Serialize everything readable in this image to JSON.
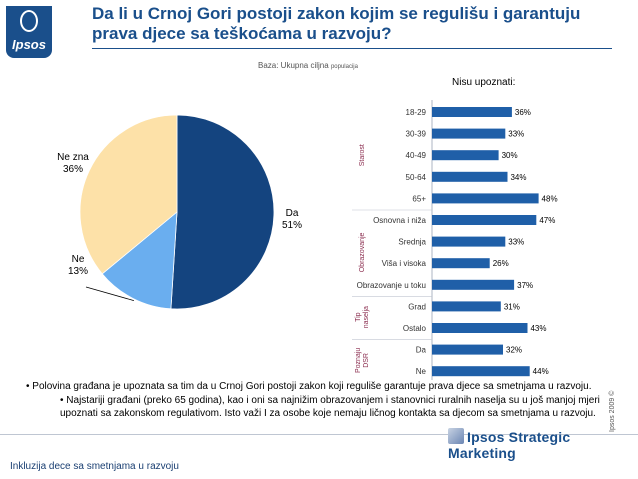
{
  "logo": {
    "text": "Ipsos",
    "icon": "ipsos-logo-icon"
  },
  "header": {
    "title": "Da li u Crnoj Gori postoji zakon kojim se regulišu i garantuju prava djece sa teškoćama u razvoju?"
  },
  "base": {
    "label": "Baza: Ukupna ciljna",
    "suffix": "populacija"
  },
  "chart_data": [
    {
      "type": "pie",
      "labels": [
        "Da",
        "Ne",
        "Ne zna"
      ],
      "values": [
        51,
        13,
        36
      ],
      "value_labels": [
        "51%",
        "13%",
        "36%"
      ],
      "colors": [
        "#14447f",
        "#6aaeef",
        "#fde1a8"
      ],
      "title": ""
    },
    {
      "type": "bar",
      "orientation": "horizontal",
      "title": "Nisu upoznati:",
      "groups": [
        {
          "name": "Starost",
          "categories": [
            "18-29",
            "30-39",
            "40-49",
            "50-64",
            "65+"
          ]
        },
        {
          "name": "Obrazovanje",
          "categories": [
            "Osnovna i niža",
            "Srednja",
            "Viša i visoka",
            "Obrazovanje u toku"
          ]
        },
        {
          "name": "Tip naselja",
          "categories": [
            "Grad",
            "Ostalo"
          ]
        },
        {
          "name": "Poznaju DSR",
          "categories": [
            "Da",
            "Ne"
          ]
        }
      ],
      "categories": [
        "18-29",
        "30-39",
        "40-49",
        "50-64",
        "65+",
        "Osnovna i niža",
        "Srednja",
        "Viša i visoka",
        "Obrazovanje u toku",
        "Grad",
        "Ostalo",
        "Da",
        "Ne"
      ],
      "values": [
        36,
        33,
        30,
        34,
        48,
        47,
        33,
        26,
        37,
        31,
        43,
        32,
        44
      ],
      "value_labels": [
        "36%",
        "33%",
        "30%",
        "34%",
        "48%",
        "47%",
        "33%",
        "26%",
        "37%",
        "31%",
        "43%",
        "32%",
        "44%"
      ],
      "xlim": [
        0,
        50
      ],
      "color": "#1f5fa8"
    }
  ],
  "notes": {
    "line1": "• Polovina građana je upoznata sa tim da u Crnoj Gori postoji zakon koji reguliše  garantuje prava djece sa smetnjama u razvoju.",
    "line2": "• Najstariji građani (preko 65 godina), kao i oni sa najnižim obrazovanjem i stanovnici ruralnih naselja su u još manjoj mjeri upoznati sa zakonskom regulativom. Isto važi I za osobe koje nemaju ličnog kontakta sa djecom sa smetnjama u razvoju."
  },
  "copyright": "Ipsos 2009 ©",
  "footer": {
    "left": "Inkluzija dece sa smetnjama u razvoju",
    "brand": "Ipsos Strategic Marketing"
  }
}
